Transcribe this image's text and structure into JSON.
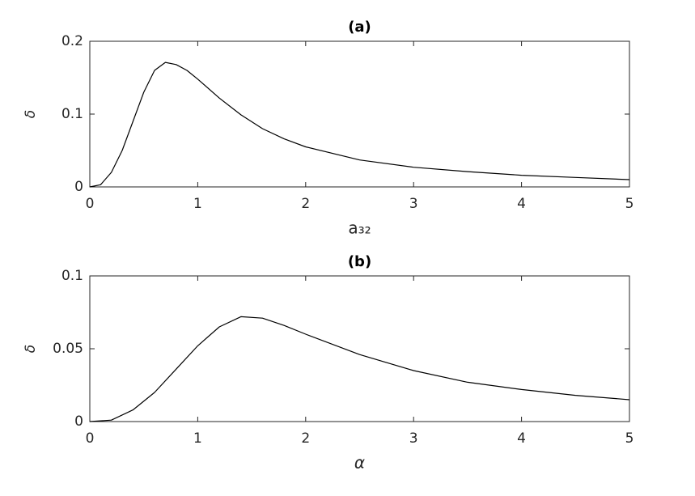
{
  "chart_data": [
    {
      "type": "line",
      "title": "(a)",
      "ylabel": "δ",
      "xlabel": "a₃₂",
      "x": [
        0,
        0.1,
        0.2,
        0.3,
        0.4,
        0.5,
        0.6,
        0.7,
        0.8,
        0.9,
        1.0,
        1.2,
        1.4,
        1.6,
        1.8,
        2.0,
        2.5,
        3.0,
        3.5,
        4.0,
        4.5,
        5.0
      ],
      "series": [
        {
          "color": "#000000",
          "values": [
            0,
            0.003,
            0.02,
            0.05,
            0.09,
            0.13,
            0.16,
            0.171,
            0.168,
            0.16,
            0.148,
            0.122,
            0.099,
            0.08,
            0.066,
            0.055,
            0.037,
            0.027,
            0.021,
            0.016,
            0.013,
            0.01
          ]
        }
      ],
      "xlim": [
        0,
        5
      ],
      "xticks": [
        0,
        1,
        2,
        3,
        4,
        5
      ],
      "ylim": [
        0,
        0.2
      ],
      "yticks": [
        0,
        0.1,
        0.2
      ]
    },
    {
      "type": "line",
      "title": "(b)",
      "ylabel": "δ",
      "xlabel": "α",
      "x": [
        0,
        0.2,
        0.4,
        0.6,
        0.8,
        1.0,
        1.2,
        1.4,
        1.6,
        1.8,
        2.0,
        2.5,
        3.0,
        3.5,
        4.0,
        4.5,
        5.0
      ],
      "series": [
        {
          "color": "#000000",
          "values": [
            0,
            0.001,
            0.008,
            0.02,
            0.036,
            0.052,
            0.065,
            0.072,
            0.071,
            0.066,
            0.06,
            0.046,
            0.035,
            0.027,
            0.022,
            0.018,
            0.015
          ]
        }
      ],
      "xlim": [
        0,
        5
      ],
      "xticks": [
        0,
        1,
        2,
        3,
        4,
        5
      ],
      "ylim": [
        0,
        0.1
      ],
      "yticks": [
        0,
        0.05,
        0.1
      ]
    }
  ]
}
